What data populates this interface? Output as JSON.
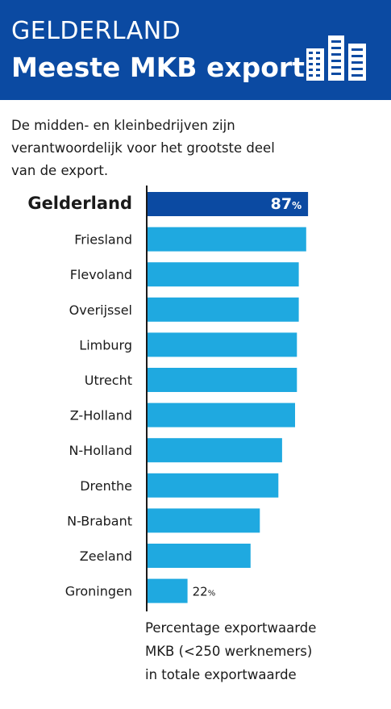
{
  "header": {
    "kicker": "GELDERLAND",
    "title": "Meeste MKB export",
    "icon": "office-buildings-icon"
  },
  "intro": {
    "lines": [
      "De midden- en kleinbedrijven zijn",
      "verantwoordelijk voor het grootste deel",
      "van de export."
    ]
  },
  "colors": {
    "header_bg": "#0b4aa2",
    "highlight_bar": "#0b4aa2",
    "bar": "#1fa9e0",
    "axis": "#1a1a1a"
  },
  "chart_data": {
    "type": "bar",
    "orientation": "horizontal",
    "highlight": "Gelderland",
    "categories": [
      "Gelderland",
      "Friesland",
      "Flevoland",
      "Overijssel",
      "Limburg",
      "Utrecht",
      "Z-Holland",
      "N-Holland",
      "Drenthe",
      "N-Brabant",
      "Zeeland",
      "Groningen"
    ],
    "values": [
      87,
      86,
      82,
      82,
      81,
      81,
      80,
      73,
      71,
      61,
      56,
      22
    ],
    "data_labels": [
      {
        "category": "Gelderland",
        "value": "87",
        "unit": "%"
      },
      {
        "category": "Groningen",
        "value": "22",
        "unit": "%"
      }
    ],
    "xlim": [
      0,
      100
    ],
    "grid": false,
    "unit": "%"
  },
  "footnote": {
    "lines": [
      "Percentage exportwaarde",
      "MKB (<250 werknemers)",
      "in totale exportwaarde"
    ]
  }
}
